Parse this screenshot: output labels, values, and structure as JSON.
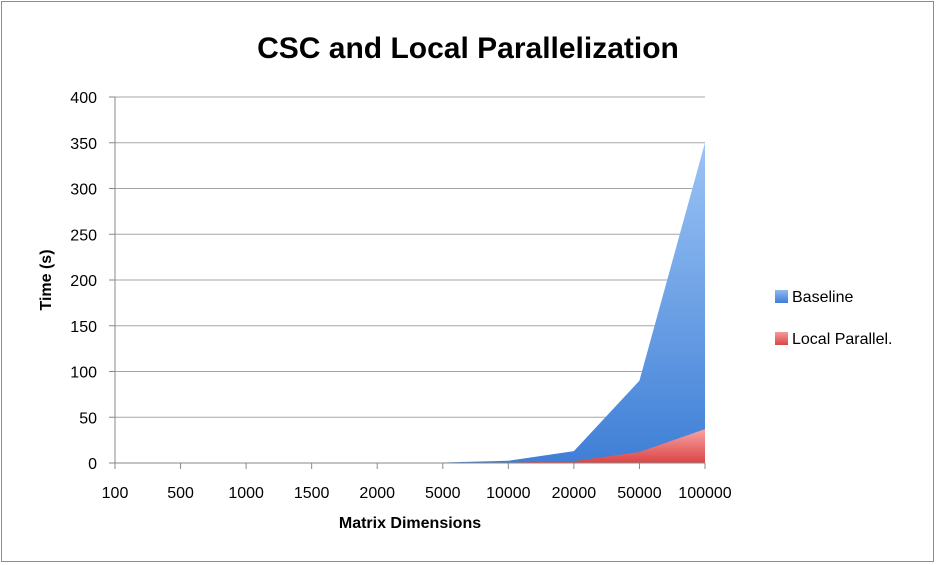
{
  "chart_data": {
    "type": "area",
    "title": "CSC and Local Parallelization",
    "xlabel": "Matrix Dimensions",
    "ylabel": "Time (s)",
    "categories": [
      "100",
      "500",
      "1000",
      "1500",
      "2000",
      "5000",
      "10000",
      "20000",
      "50000",
      "100000"
    ],
    "ylim": [
      0,
      400
    ],
    "yticks": [
      0,
      50,
      100,
      150,
      200,
      250,
      300,
      350,
      400
    ],
    "grid": true,
    "legend_position": "right",
    "series": [
      {
        "name": "Baseline",
        "color": "#4a86d8",
        "values": [
          0,
          0,
          0,
          0,
          0,
          0.5,
          2.5,
          13,
          90,
          350
        ]
      },
      {
        "name": "Local Parallel.",
        "color": "#e55b5b",
        "values": [
          0,
          0,
          0,
          0,
          0,
          0.1,
          0.5,
          2,
          12,
          37
        ]
      }
    ]
  }
}
